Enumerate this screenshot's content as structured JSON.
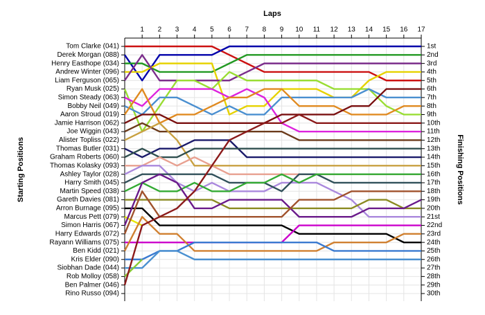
{
  "chart_data": {
    "type": "lap",
    "title": "Laps",
    "y_label": "Starting Positions",
    "y2_label": "Finishing Positions",
    "x": [
      0,
      1,
      2,
      3,
      4,
      5,
      6,
      7,
      8,
      9,
      10,
      11,
      12,
      13,
      14,
      15,
      16,
      17
    ],
    "xlim": [
      0,
      17
    ],
    "xticks": [
      1,
      2,
      3,
      4,
      5,
      6,
      7,
      8,
      9,
      10,
      11,
      12,
      13,
      14,
      15,
      16,
      17
    ],
    "ylim": [
      1,
      30
    ],
    "yticks": [
      {
        "value": 1,
        "label": "Tom Clarke (041)"
      },
      {
        "value": 2,
        "label": "Derek Morgan (088)"
      },
      {
        "value": 3,
        "label": "Henry Easthope (034)"
      },
      {
        "value": 4,
        "label": "Andrew Winter (096)"
      },
      {
        "value": 5,
        "label": "Liam Ferguson (065)"
      },
      {
        "value": 6,
        "label": "Ryan Musk (025)"
      },
      {
        "value": 7,
        "label": "Simon Steady (063)"
      },
      {
        "value": 8,
        "label": "Bobby Neil (049)"
      },
      {
        "value": 9,
        "label": "Aaron Stroud (019)"
      },
      {
        "value": 10,
        "label": "Jamie Harrison (062)"
      },
      {
        "value": 11,
        "label": "Joe Wiggin (043)"
      },
      {
        "value": 12,
        "label": "Alister Topliss (022)"
      },
      {
        "value": 13,
        "label": "Thomas Butler (031)"
      },
      {
        "value": 14,
        "label": "Graham Roberts (060)"
      },
      {
        "value": 15,
        "label": "Thomas Kolasky (093)"
      },
      {
        "value": 16,
        "label": "Ashley Taylor (028)"
      },
      {
        "value": 17,
        "label": "Harry Smith (045)"
      },
      {
        "value": 18,
        "label": "Martin Speed (038)"
      },
      {
        "value": 19,
        "label": "Gareth Davies (081)"
      },
      {
        "value": 20,
        "label": "Arron Burnage (095)"
      },
      {
        "value": 21,
        "label": "Marcus Pett (079)"
      },
      {
        "value": 22,
        "label": "Simon Harris (067)"
      },
      {
        "value": 23,
        "label": "Harry Edwards (072)"
      },
      {
        "value": 24,
        "label": "Rayann Williams (075)"
      },
      {
        "value": 25,
        "label": "Ben Kidd (021)"
      },
      {
        "value": 26,
        "label": "Kris Elder (090)"
      },
      {
        "value": 27,
        "label": "Siobhan Dade (044)"
      },
      {
        "value": 28,
        "label": "Rob Molloy (058)"
      },
      {
        "value": 29,
        "label": "Ben Palmer (046)"
      },
      {
        "value": 30,
        "label": "Rino Russo (094)"
      }
    ],
    "y2ticks": [
      {
        "value": 1,
        "label": "1st"
      },
      {
        "value": 2,
        "label": "2nd"
      },
      {
        "value": 3,
        "label": "3rd"
      },
      {
        "value": 4,
        "label": "4th"
      },
      {
        "value": 5,
        "label": "5th"
      },
      {
        "value": 6,
        "label": "6th"
      },
      {
        "value": 7,
        "label": "7th"
      },
      {
        "value": 8,
        "label": "8th"
      },
      {
        "value": 9,
        "label": "9th"
      },
      {
        "value": 10,
        "label": "10th"
      },
      {
        "value": 11,
        "label": "11th"
      },
      {
        "value": 12,
        "label": "12th"
      },
      {
        "value": 13,
        "label": "13th"
      },
      {
        "value": 14,
        "label": "14th"
      },
      {
        "value": 15,
        "label": "15th"
      },
      {
        "value": 16,
        "label": "16th"
      },
      {
        "value": 17,
        "label": "17th"
      },
      {
        "value": 18,
        "label": "18th"
      },
      {
        "value": 19,
        "label": "19th"
      },
      {
        "value": 20,
        "label": "20th"
      },
      {
        "value": 21,
        "label": "21st"
      },
      {
        "value": 22,
        "label": "22nd"
      },
      {
        "value": 23,
        "label": "23rd"
      },
      {
        "value": 24,
        "label": "24th"
      },
      {
        "value": 25,
        "label": "25th"
      },
      {
        "value": 26,
        "label": "26th"
      },
      {
        "value": 27,
        "label": "27th"
      },
      {
        "value": 28,
        "label": "28th"
      },
      {
        "value": 29,
        "label": "29th"
      },
      {
        "value": 30,
        "label": "30th"
      }
    ],
    "grid": true,
    "series": [
      {
        "color": "#cc1111",
        "values": [
          1,
          1,
          1,
          1,
          1,
          1,
          2,
          3,
          4,
          4,
          4,
          4,
          4,
          4,
          4,
          5,
          5,
          5
        ]
      },
      {
        "color": "#0000aa",
        "values": [
          2,
          5,
          2,
          2,
          2,
          2,
          1,
          1,
          1,
          1,
          1,
          1,
          1,
          1,
          1,
          1,
          1,
          1
        ]
      },
      {
        "color": "#229922",
        "values": [
          3,
          3,
          4,
          4,
          4,
          4,
          3,
          2,
          2,
          2,
          2,
          2,
          2,
          2,
          2,
          2,
          2,
          2
        ]
      },
      {
        "color": "#e6d200",
        "values": [
          4,
          4,
          3,
          3,
          3,
          3,
          9,
          8,
          8,
          6,
          6,
          6,
          7,
          7,
          5,
          4,
          4,
          4
        ]
      },
      {
        "color": "#7b2d8b",
        "values": [
          5,
          2,
          5,
          5,
          5,
          5,
          5,
          4,
          3,
          3,
          3,
          3,
          3,
          3,
          3,
          3,
          3,
          3
        ]
      },
      {
        "color": "#99dd33",
        "values": [
          6,
          11,
          8,
          5,
          5,
          6,
          4,
          5,
          5,
          5,
          5,
          5,
          6,
          6,
          6,
          8,
          9,
          9
        ]
      },
      {
        "color": "#dd22dd",
        "values": [
          7,
          8,
          6,
          6,
          6,
          6,
          7,
          6,
          7,
          10,
          11,
          11,
          11,
          11,
          11,
          11,
          11,
          11
        ]
      },
      {
        "color": "#4a8fd0",
        "values": [
          8,
          9,
          7,
          7,
          8,
          9,
          8,
          9,
          9,
          7,
          7,
          7,
          7,
          7,
          6,
          7,
          7,
          7
        ]
      },
      {
        "color": "#e08a20",
        "values": [
          9,
          6,
          10,
          9,
          9,
          8,
          7,
          7,
          6,
          6,
          8,
          8,
          8,
          9,
          9,
          9,
          8,
          8
        ]
      },
      {
        "color": "#7a1010",
        "values": [
          10,
          9,
          9,
          10,
          10,
          10,
          10,
          10,
          10,
          9,
          9,
          9,
          9,
          8,
          8,
          6,
          6,
          6
        ]
      },
      {
        "color": "#6b3a1a",
        "values": [
          11,
          10,
          11,
          11,
          11,
          11,
          11,
          11,
          11,
          11,
          12,
          12,
          12,
          12,
          12,
          12,
          12,
          12
        ]
      },
      {
        "color": "#c8a040",
        "values": [
          12,
          11,
          10,
          12,
          15,
          15,
          15,
          15,
          15,
          15,
          15,
          15,
          15,
          15,
          15,
          15,
          15,
          15
        ]
      },
      {
        "color": "#1a1a6a",
        "values": [
          13,
          14,
          13,
          13,
          12,
          12,
          12,
          14,
          14,
          14,
          14,
          14,
          14,
          14,
          14,
          14,
          14,
          14
        ]
      },
      {
        "color": "#2f4f4f",
        "values": [
          14,
          13,
          14,
          14,
          13,
          13,
          13,
          13,
          13,
          13,
          13,
          13,
          13,
          13,
          13,
          13,
          13,
          13
        ]
      },
      {
        "color": "#e8a090",
        "values": [
          15,
          15,
          14,
          15,
          14,
          15,
          16,
          16,
          16,
          16,
          16,
          16,
          16,
          16,
          16,
          16,
          16,
          16
        ]
      },
      {
        "color": "#aa88dd",
        "values": [
          16,
          15,
          15,
          17,
          18,
          17,
          18,
          18,
          18,
          17,
          17,
          17,
          18,
          19,
          21,
          21,
          21,
          21
        ]
      },
      {
        "color": "#30505a",
        "values": [
          17,
          16,
          16,
          16,
          16,
          16,
          17,
          17,
          17,
          18,
          16,
          16,
          17,
          17,
          17,
          17,
          17,
          17
        ]
      },
      {
        "color": "#33aa33",
        "values": [
          18,
          17,
          18,
          18,
          17,
          18,
          18,
          17,
          17,
          16,
          17,
          16,
          16,
          16,
          16,
          16,
          16,
          16
        ]
      },
      {
        "color": "#8a8a20",
        "values": [
          19,
          19,
          19,
          19,
          19,
          19,
          20,
          20,
          20,
          20,
          20,
          20,
          20,
          20,
          19,
          19,
          20,
          20
        ]
      },
      {
        "color": "#000000",
        "values": [
          20,
          20,
          22,
          22,
          22,
          22,
          22,
          22,
          22,
          22,
          23,
          23,
          23,
          23,
          23,
          23,
          24,
          24
        ]
      },
      {
        "color": "#e6e600",
        "values": [
          21,
          22,
          null,
          null,
          null,
          null,
          null,
          null,
          null,
          null,
          null,
          null,
          null,
          null,
          null,
          null,
          null,
          null
        ]
      },
      {
        "color": "#6a1a8a",
        "values": [
          22,
          17,
          16,
          17,
          20,
          20,
          19,
          19,
          19,
          19,
          21,
          21,
          21,
          21,
          20,
          20,
          20,
          19
        ]
      },
      {
        "color": "#a0522d",
        "values": [
          23,
          18,
          21,
          21,
          21,
          21,
          21,
          21,
          21,
          21,
          19,
          19,
          19,
          18,
          18,
          18,
          18,
          18
        ]
      },
      {
        "color": "#cc00cc",
        "values": [
          24,
          24,
          24,
          24,
          24,
          24,
          24,
          24,
          24,
          24,
          22,
          22,
          22,
          22,
          22,
          22,
          22,
          22
        ]
      },
      {
        "color": "#d08030",
        "values": [
          25,
          21,
          23,
          23,
          25,
          25,
          25,
          25,
          25,
          25,
          25,
          25,
          24,
          24,
          24,
          24,
          23,
          23
        ]
      },
      {
        "color": "#3a7ad0",
        "values": [
          26,
          26,
          25,
          25,
          24,
          24,
          24,
          24,
          24,
          24,
          24,
          24,
          25,
          25,
          25,
          25,
          25,
          25
        ]
      },
      {
        "color": "#4a90d0",
        "values": [
          27,
          27,
          25,
          25,
          26,
          26,
          26,
          26,
          26,
          26,
          26,
          26,
          26,
          26,
          26,
          26,
          26,
          26
        ]
      },
      {
        "color": "#88cc33",
        "values": [
          28,
          26,
          null,
          null,
          null,
          null,
          null,
          null,
          null,
          null,
          null,
          null,
          null,
          null,
          null,
          null,
          null,
          null
        ]
      },
      {
        "color": "#8b1a1a",
        "values": [
          29,
          22,
          21,
          20,
          18,
          15,
          12,
          11,
          10,
          10,
          9,
          10,
          10,
          10,
          10,
          10,
          10,
          10
        ]
      },
      {
        "color": "#999999",
        "values": [
          30,
          null,
          null,
          null,
          null,
          null,
          null,
          null,
          null,
          null,
          null,
          null,
          null,
          null,
          null,
          null,
          null,
          null
        ]
      }
    ]
  }
}
